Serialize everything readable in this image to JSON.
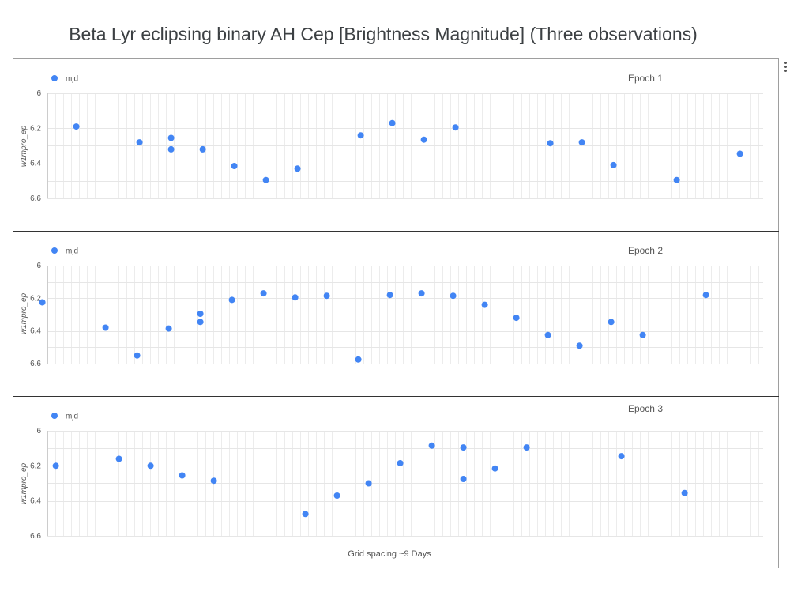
{
  "title": "Beta Lyr eclipsing binary AH Cep  [Brightness Magnitude] (Three observations)",
  "x_axis_label": "Grid spacing ~9 Days",
  "point_color": "#4285f4",
  "menu_icon": "more-vert-icon",
  "chart_data": [
    {
      "type": "scatter",
      "title": "Epoch 1",
      "legend": "mjd",
      "ylabel": "w1mpro_ep",
      "ylim": [
        6,
        6.6
      ],
      "y_ticks": [
        "6",
        "6.2",
        "6.4",
        "6.6"
      ],
      "y_reversed": true,
      "xlim": [
        0,
        45
      ],
      "points": [
        {
          "x": 3.0,
          "y": 6.19
        },
        {
          "x": 7.0,
          "y": 6.28
        },
        {
          "x": 9.0,
          "y": 6.255
        },
        {
          "x": 9.0,
          "y": 6.32
        },
        {
          "x": 11.0,
          "y": 6.32
        },
        {
          "x": 13.0,
          "y": 6.415
        },
        {
          "x": 15.0,
          "y": 6.495
        },
        {
          "x": 17.0,
          "y": 6.43
        },
        {
          "x": 21.0,
          "y": 6.24
        },
        {
          "x": 23.0,
          "y": 6.17
        },
        {
          "x": 25.0,
          "y": 6.265
        },
        {
          "x": 27.0,
          "y": 6.195
        },
        {
          "x": 33.0,
          "y": 6.285
        },
        {
          "x": 35.0,
          "y": 6.28
        },
        {
          "x": 37.0,
          "y": 6.41
        },
        {
          "x": 41.0,
          "y": 6.495
        },
        {
          "x": 45.0,
          "y": 6.345
        }
      ]
    },
    {
      "type": "scatter",
      "title": "Epoch 2",
      "legend": "mjd",
      "ylabel": "w1mpro_ep",
      "ylim": [
        6,
        6.6
      ],
      "y_ticks": [
        "6",
        "6.2",
        "6.4",
        "6.6"
      ],
      "y_reversed": true,
      "xlim": [
        0,
        45
      ],
      "points": [
        {
          "x": 0.85,
          "y": 6.225
        },
        {
          "x": 4.85,
          "y": 6.38
        },
        {
          "x": 6.85,
          "y": 6.55
        },
        {
          "x": 8.85,
          "y": 6.385
        },
        {
          "x": 10.85,
          "y": 6.295
        },
        {
          "x": 10.85,
          "y": 6.345
        },
        {
          "x": 12.85,
          "y": 6.21
        },
        {
          "x": 14.85,
          "y": 6.17
        },
        {
          "x": 16.85,
          "y": 6.195
        },
        {
          "x": 18.85,
          "y": 6.185
        },
        {
          "x": 20.85,
          "y": 6.575
        },
        {
          "x": 22.85,
          "y": 6.18
        },
        {
          "x": 24.85,
          "y": 6.17
        },
        {
          "x": 26.85,
          "y": 6.185
        },
        {
          "x": 28.85,
          "y": 6.24
        },
        {
          "x": 30.85,
          "y": 6.32
        },
        {
          "x": 32.85,
          "y": 6.425
        },
        {
          "x": 34.85,
          "y": 6.49
        },
        {
          "x": 36.85,
          "y": 6.345
        },
        {
          "x": 38.85,
          "y": 6.425
        },
        {
          "x": 42.85,
          "y": 6.18
        }
      ]
    },
    {
      "type": "scatter",
      "title": "Epoch 3",
      "legend": "mjd",
      "ylabel": "w1mpro_ep",
      "ylim": [
        6,
        6.6
      ],
      "y_ticks": [
        "6",
        "6.2",
        "6.4",
        "6.6"
      ],
      "y_reversed": true,
      "xlim": [
        0,
        45
      ],
      "points": [
        {
          "x": 1.7,
          "y": 6.2
        },
        {
          "x": 5.7,
          "y": 6.16
        },
        {
          "x": 7.7,
          "y": 6.2
        },
        {
          "x": 9.7,
          "y": 6.255
        },
        {
          "x": 11.7,
          "y": 6.285
        },
        {
          "x": 17.5,
          "y": 6.475
        },
        {
          "x": 19.5,
          "y": 6.37
        },
        {
          "x": 21.5,
          "y": 6.3
        },
        {
          "x": 23.5,
          "y": 6.185
        },
        {
          "x": 25.5,
          "y": 6.085
        },
        {
          "x": 27.5,
          "y": 6.095
        },
        {
          "x": 27.5,
          "y": 6.275
        },
        {
          "x": 29.5,
          "y": 6.215
        },
        {
          "x": 31.5,
          "y": 6.095
        },
        {
          "x": 37.5,
          "y": 6.145
        },
        {
          "x": 41.5,
          "y": 6.355
        }
      ]
    }
  ]
}
